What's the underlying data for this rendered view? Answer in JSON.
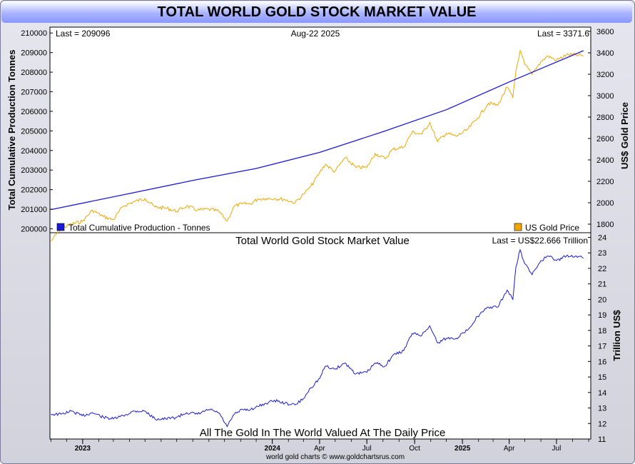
{
  "title": "TOTAL WORLD GOLD STOCK MARKET VALUE",
  "top_panel": {
    "last_left": "Last = 209096",
    "date": "Aug-22  2025",
    "last_right": "Last = 3371.6",
    "left_axis_label": "Total Cumulative Production Tonnes",
    "right_axis_label": "US$ Gold Price",
    "legend_left": "Total Cumulative Production - Tonnes",
    "legend_right": "US Gold Price",
    "left_ticks": [
      "200000",
      "201000",
      "202000",
      "203000",
      "204000",
      "205000",
      "206000",
      "207000",
      "208000",
      "209000",
      "210000"
    ],
    "right_ticks": [
      "1800",
      "2000",
      "2200",
      "2400",
      "2600",
      "2800",
      "3000",
      "3200",
      "3400",
      "3600"
    ]
  },
  "bottom_panel": {
    "title": "Total World Gold Stock Market Value",
    "last": "Last = US$22.666 Trillion",
    "axis_label": "Trillion US$",
    "ticks": [
      "11",
      "12",
      "13",
      "14",
      "15",
      "16",
      "17",
      "18",
      "19",
      "20",
      "21",
      "22",
      "23",
      "24"
    ],
    "caption": "All The Gold In The World Valued At The Daily Price"
  },
  "x_axis": {
    "labels": [
      "2023",
      "2024",
      "Apr",
      "Jul",
      "Oct",
      "2025",
      "Apr",
      "Jul"
    ],
    "bold": [
      true,
      true,
      false,
      false,
      false,
      true,
      false,
      false
    ]
  },
  "footer": "world gold charts © www.goldchartsrus.com",
  "colors": {
    "production": "#1a1ad8",
    "gold": "#f0a800",
    "market_value": "#1a1ad8"
  },
  "chart_data": [
    {
      "type": "line",
      "title": "",
      "xlabel": "",
      "ylabel": "Total Cumulative Production Tonnes",
      "ylim": [
        199800,
        210300
      ],
      "series": [
        {
          "name": "Total Cumulative Production - Tonnes",
          "axis": "left",
          "x": [
            "2022-11-01",
            "2023-04-01",
            "2023-08-01",
            "2023-12-01",
            "2024-04-01",
            "2024-08-01",
            "2024-12-01",
            "2025-04-01",
            "2025-08-22"
          ],
          "values": [
            200980,
            201800,
            202470,
            203080,
            203900,
            204960,
            206080,
            207500,
            209096
          ]
        },
        {
          "name": "US Gold Price",
          "axis": "right",
          "y2lim": [
            1720,
            3640
          ],
          "x": [
            "2022-11-01",
            "2022-11-20",
            "2022-12-10",
            "2022-12-31",
            "2023-01-20",
            "2023-02-10",
            "2023-03-01",
            "2023-03-20",
            "2023-04-10",
            "2023-05-01",
            "2023-05-20",
            "2023-06-10",
            "2023-07-01",
            "2023-07-20",
            "2023-08-10",
            "2023-09-01",
            "2023-09-20",
            "2023-10-06",
            "2023-10-20",
            "2023-11-05",
            "2023-11-20",
            "2023-12-04",
            "2023-12-20",
            "2024-01-05",
            "2024-01-25",
            "2024-02-14",
            "2024-03-01",
            "2024-03-15",
            "2024-04-01",
            "2024-04-12",
            "2024-04-30",
            "2024-05-20",
            "2024-06-10",
            "2024-07-01",
            "2024-07-17",
            "2024-08-05",
            "2024-08-20",
            "2024-09-10",
            "2024-09-26",
            "2024-10-15",
            "2024-10-30",
            "2024-11-14",
            "2024-12-01",
            "2024-12-20",
            "2025-01-10",
            "2025-01-30",
            "2025-02-20",
            "2025-03-10",
            "2025-03-28",
            "2025-04-08",
            "2025-04-14",
            "2025-04-22",
            "2025-05-01",
            "2025-05-15",
            "2025-06-01",
            "2025-06-15",
            "2025-07-01",
            "2025-07-20",
            "2025-08-08",
            "2025-08-22"
          ],
          "values": [
            1640,
            1760,
            1800,
            1825,
            1930,
            1870,
            1840,
            1970,
            2010,
            2040,
            1960,
            1950,
            1920,
            1970,
            1930,
            1940,
            1920,
            1830,
            1970,
            1990,
            1990,
            2035,
            2040,
            2040,
            2030,
            2000,
            2080,
            2150,
            2280,
            2360,
            2290,
            2420,
            2330,
            2330,
            2460,
            2410,
            2500,
            2520,
            2660,
            2640,
            2750,
            2570,
            2650,
            2620,
            2680,
            2790,
            2930,
            2910,
            3080,
            2980,
            3230,
            3420,
            3290,
            3200,
            3320,
            3370,
            3330,
            3380,
            3380,
            3371.6
          ]
        }
      ]
    },
    {
      "type": "line",
      "title": "Total World Gold Stock Market Value",
      "xlabel": "",
      "ylabel": "Trillion US$",
      "ylim": [
        11,
        24.3
      ],
      "series": [
        {
          "name": "Total World Gold Stock Market Value",
          "x": [
            "2022-11-01",
            "2022-11-20",
            "2022-12-10",
            "2022-12-31",
            "2023-01-20",
            "2023-02-10",
            "2023-03-01",
            "2023-03-20",
            "2023-04-10",
            "2023-05-01",
            "2023-05-20",
            "2023-06-10",
            "2023-07-01",
            "2023-07-20",
            "2023-08-10",
            "2023-09-01",
            "2023-09-20",
            "2023-10-06",
            "2023-10-20",
            "2023-11-05",
            "2023-11-20",
            "2023-12-04",
            "2023-12-20",
            "2024-01-05",
            "2024-01-25",
            "2024-02-14",
            "2024-03-01",
            "2024-03-15",
            "2024-04-01",
            "2024-04-12",
            "2024-04-30",
            "2024-05-20",
            "2024-06-10",
            "2024-07-01",
            "2024-07-17",
            "2024-08-05",
            "2024-08-20",
            "2024-09-10",
            "2024-09-26",
            "2024-10-15",
            "2024-10-30",
            "2024-11-14",
            "2024-12-01",
            "2024-12-20",
            "2025-01-10",
            "2025-01-30",
            "2025-02-20",
            "2025-03-10",
            "2025-03-28",
            "2025-04-08",
            "2025-04-14",
            "2025-04-22",
            "2025-05-01",
            "2025-05-15",
            "2025-06-01",
            "2025-06-15",
            "2025-07-01",
            "2025-07-20",
            "2025-08-08",
            "2025-08-22"
          ],
          "values": [
            12.6,
            12.6,
            12.8,
            12.5,
            12.7,
            12.4,
            12.3,
            12.5,
            12.8,
            12.8,
            12.3,
            12.3,
            12.4,
            12.7,
            12.6,
            12.9,
            12.7,
            11.8,
            12.6,
            12.9,
            12.9,
            13.1,
            13.3,
            13.5,
            13.3,
            13.2,
            13.6,
            14.3,
            14.9,
            15.7,
            15.5,
            15.9,
            15.2,
            15.3,
            15.9,
            15.7,
            16.4,
            16.7,
            17.8,
            17.7,
            18.3,
            17.2,
            17.5,
            17.5,
            18.0,
            18.9,
            19.5,
            19.5,
            20.6,
            20.0,
            22.1,
            23.2,
            22.3,
            21.6,
            22.5,
            22.8,
            22.5,
            22.8,
            22.8,
            22.666
          ]
        }
      ]
    }
  ]
}
